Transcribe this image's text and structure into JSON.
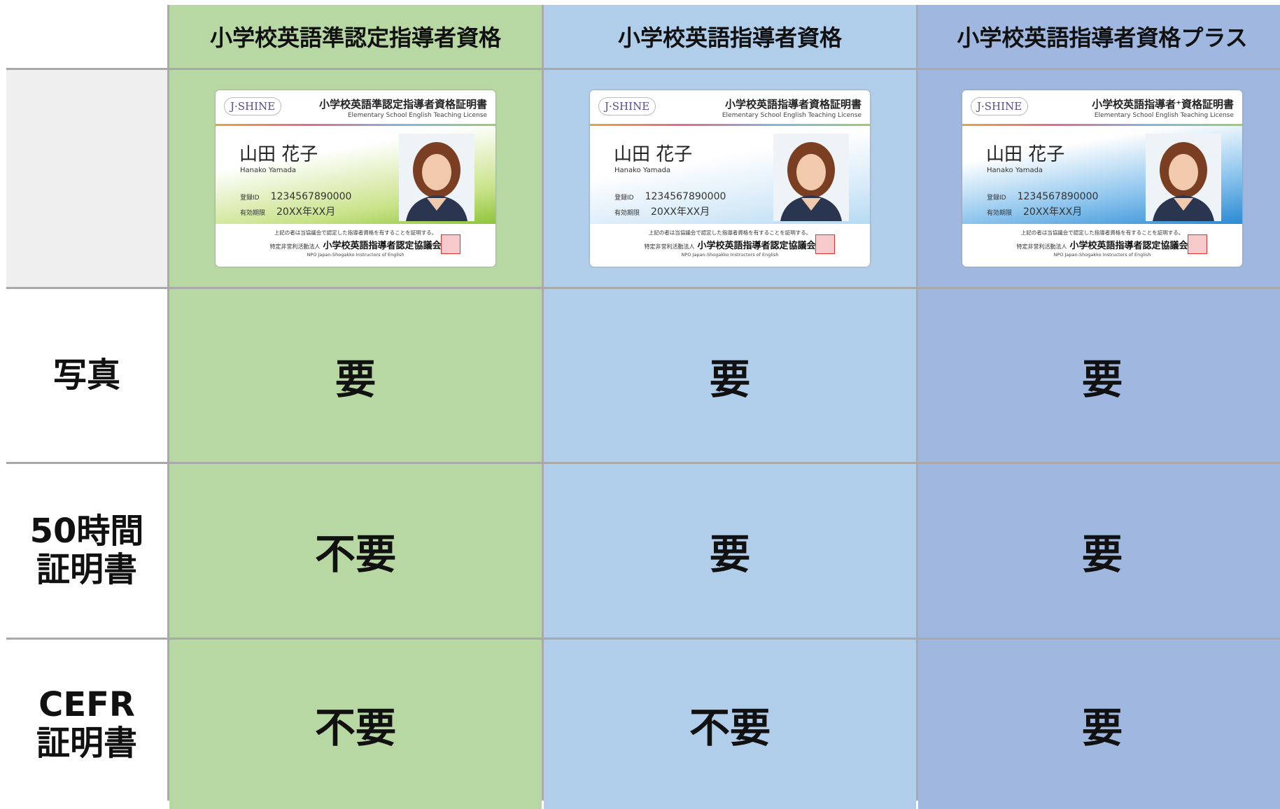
{
  "table": {
    "header": [
      "小学校英語準認定指導者資格",
      "小学校英語指導者資格",
      "小学校英語指導者資格プラス"
    ],
    "cards": [
      {
        "logo": "J·SHINE",
        "title": "小学校英語準認定指導者資格証明書",
        "subtitle": "Elementary School English Teaching License",
        "name": "山田 花子",
        "name_en": "Hanako Yamada",
        "id_label": "登録ID",
        "id": "1234567890000",
        "expiry_label": "有効期限",
        "expiry": "20XX年XX月",
        "statement": "上記の者は当協議会で認定した指導者資格を有することを証明する。",
        "org_type": "特定非営利活動法人",
        "org": "小学校英語指導者認定協議会",
        "org_en": "NPO Japan-Shogakko Instructors of English"
      },
      {
        "logo": "J·SHINE",
        "title": "小学校英語指導者資格証明書",
        "subtitle": "Elementary School English Teaching License",
        "name": "山田 花子",
        "name_en": "Hanako Yamada",
        "id_label": "登録ID",
        "id": "1234567890000",
        "expiry_label": "有効期限",
        "expiry": "20XX年XX月",
        "statement": "上記の者は当協議会で認定した指導者資格を有することを証明する。",
        "org_type": "特定非営利活動法人",
        "org": "小学校英語指導者認定協議会",
        "org_en": "NPO Japan-Shogakko Instructors of English"
      },
      {
        "logo": "J·SHINE",
        "title": "小学校英語指導者⁺資格証明書",
        "subtitle": "Elementary School English Teaching License",
        "name": "山田 花子",
        "name_en": "Hanako Yamada",
        "id_label": "登録ID",
        "id": "1234567890000",
        "expiry_label": "有効期限",
        "expiry": "20XX年XX月",
        "statement": "上記の者は当協議会で認定した指導者資格を有することを証明する。",
        "org_type": "特定非営利活動法人",
        "org": "小学校英語指導者認定協議会",
        "org_en": "NPO Japan-Shogakko Instructors of English"
      }
    ],
    "rows": [
      {
        "label": [
          "写真"
        ],
        "cells": [
          "要",
          "要",
          "要"
        ]
      },
      {
        "label": [
          "50時間",
          "証明書"
        ],
        "cells": [
          "不要",
          "要",
          "要"
        ]
      },
      {
        "label": [
          "CEFR",
          "証明書"
        ],
        "cells": [
          "不要",
          "不要",
          "要"
        ]
      }
    ]
  }
}
